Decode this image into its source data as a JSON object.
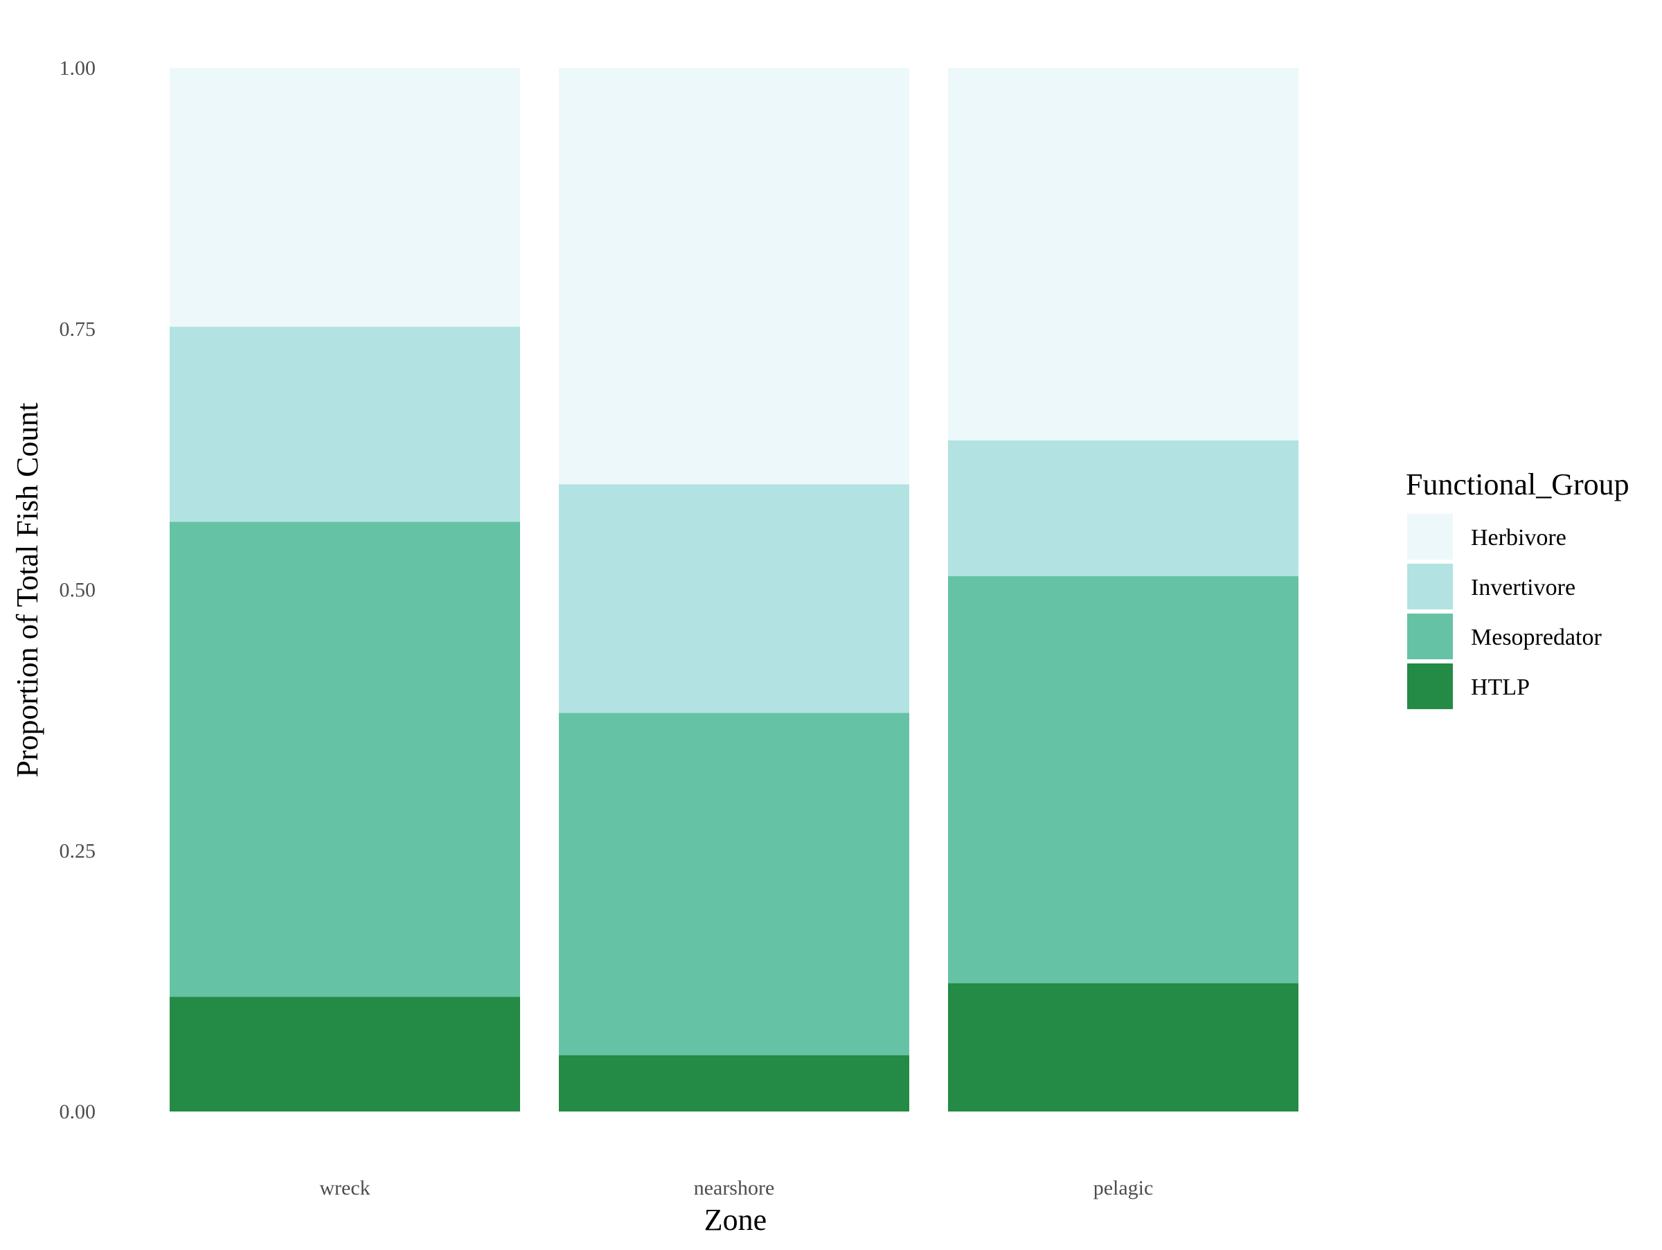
{
  "chart_data": {
    "type": "bar",
    "stacked": true,
    "normalized": true,
    "xlabel": "Zone",
    "ylabel": "Proportion of Total Fish Count",
    "categories": [
      "wreck",
      "nearshore",
      "pelagic"
    ],
    "y_ticks": [
      "0.00",
      "0.25",
      "0.50",
      "0.75",
      "1.00"
    ],
    "ylim": [
      0,
      1
    ],
    "grid": false,
    "legend": {
      "title": "Functional_Group",
      "position": "right"
    },
    "series": [
      {
        "name": "HTLP",
        "color": "#238b45",
        "values": [
          0.11,
          0.054,
          0.123
        ]
      },
      {
        "name": "Mesopredator",
        "color": "#66c2a4",
        "values": [
          0.455,
          0.328,
          0.39
        ]
      },
      {
        "name": "Invertivore",
        "color": "#b2e2e2",
        "values": [
          0.187,
          0.219,
          0.13
        ]
      },
      {
        "name": "Herbivore",
        "color": "#edf8fb",
        "values": [
          0.248,
          0.399,
          0.357
        ]
      }
    ]
  }
}
